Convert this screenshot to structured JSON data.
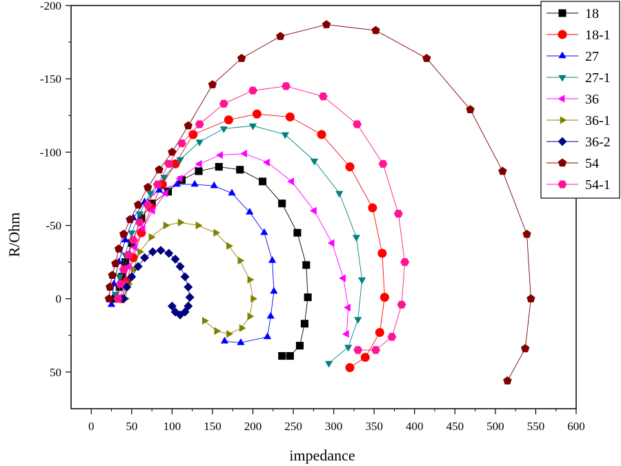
{
  "chart_data": {
    "type": "scatter",
    "xlabel": "impedance",
    "ylabel": "R/Ohm",
    "xlim": [
      -25,
      600
    ],
    "ylim": [
      -200,
      75
    ],
    "y_inverted": true,
    "x_ticks": [
      0,
      50,
      100,
      150,
      200,
      250,
      300,
      350,
      400,
      450,
      500,
      550,
      600
    ],
    "y_ticks": [
      -200,
      -150,
      -100,
      -50,
      0,
      50
    ],
    "grid": false,
    "legend_position": "top-right",
    "series": [
      {
        "name": "18",
        "color": "#000000",
        "marker": "square",
        "points": [
          [
            30,
            0
          ],
          [
            35,
            -8
          ],
          [
            38,
            -15
          ],
          [
            42,
            -25
          ],
          [
            50,
            -38
          ],
          [
            62,
            -55
          ],
          [
            75,
            -65
          ],
          [
            95,
            -73
          ],
          [
            112,
            -81
          ],
          [
            133,
            -87
          ],
          [
            158,
            -90
          ],
          [
            184,
            -88
          ],
          [
            212,
            -80
          ],
          [
            236,
            -65
          ],
          [
            255,
            -45
          ],
          [
            266,
            -23
          ],
          [
            268,
            -1
          ],
          [
            264,
            17
          ],
          [
            258,
            32
          ],
          [
            246,
            39
          ],
          [
            236,
            39
          ]
        ]
      },
      {
        "name": "18-1",
        "color": "#ff0000",
        "marker": "circle",
        "points": [
          [
            38,
            0
          ],
          [
            44,
            -12
          ],
          [
            52,
            -28
          ],
          [
            62,
            -45
          ],
          [
            74,
            -62
          ],
          [
            88,
            -78
          ],
          [
            104,
            -92
          ],
          [
            126,
            -112
          ],
          [
            170,
            -122
          ],
          [
            205,
            -126
          ],
          [
            246,
            -124
          ],
          [
            285,
            -112
          ],
          [
            320,
            -90
          ],
          [
            348,
            -62
          ],
          [
            360,
            -31
          ],
          [
            363,
            -1
          ],
          [
            357,
            23
          ],
          [
            339,
            40
          ],
          [
            320,
            47
          ]
        ]
      },
      {
        "name": "27",
        "color": "#0000ff",
        "marker": "triangle-up",
        "points": [
          [
            25,
            4
          ],
          [
            28,
            -10
          ],
          [
            34,
            -25
          ],
          [
            42,
            -40
          ],
          [
            52,
            -55
          ],
          [
            66,
            -66
          ],
          [
            84,
            -74
          ],
          [
            106,
            -78
          ],
          [
            128,
            -78
          ],
          [
            152,
            -77
          ],
          [
            174,
            -72
          ],
          [
            196,
            -59
          ],
          [
            214,
            -45
          ],
          [
            224,
            -26
          ],
          [
            226,
            -5
          ],
          [
            222,
            12
          ],
          [
            218,
            26
          ],
          [
            185,
            30
          ],
          [
            165,
            29
          ]
        ]
      },
      {
        "name": "27-1",
        "color": "#008080",
        "marker": "triangle-down",
        "points": [
          [
            30,
            -3
          ],
          [
            35,
            -15
          ],
          [
            42,
            -30
          ],
          [
            50,
            -45
          ],
          [
            60,
            -58
          ],
          [
            73,
            -72
          ],
          [
            90,
            -83
          ],
          [
            110,
            -95
          ],
          [
            134,
            -107
          ],
          [
            164,
            -116
          ],
          [
            200,
            -118
          ],
          [
            240,
            -112
          ],
          [
            276,
            -94
          ],
          [
            307,
            -72
          ],
          [
            328,
            -42
          ],
          [
            335,
            -13
          ],
          [
            330,
            14
          ],
          [
            318,
            33
          ],
          [
            294,
            44
          ]
        ]
      },
      {
        "name": "36",
        "color": "#ff00ff",
        "marker": "triangle-left",
        "points": [
          [
            36,
            0
          ],
          [
            40,
            -10
          ],
          [
            46,
            -22
          ],
          [
            54,
            -35
          ],
          [
            64,
            -48
          ],
          [
            76,
            -60
          ],
          [
            92,
            -72
          ],
          [
            110,
            -82
          ],
          [
            134,
            -92
          ],
          [
            160,
            -98
          ],
          [
            190,
            -99
          ],
          [
            218,
            -93
          ],
          [
            248,
            -80
          ],
          [
            276,
            -60
          ],
          [
            298,
            -38
          ],
          [
            312,
            -14
          ],
          [
            318,
            6
          ],
          [
            316,
            24
          ]
        ]
      },
      {
        "name": "36-1",
        "color": "#808000",
        "marker": "triangle-right",
        "points": [
          [
            42,
            0
          ],
          [
            46,
            -10
          ],
          [
            52,
            -20
          ],
          [
            60,
            -32
          ],
          [
            74,
            -42
          ],
          [
            92,
            -50
          ],
          [
            110,
            -52
          ],
          [
            132,
            -50
          ],
          [
            154,
            -45
          ],
          [
            170,
            -36
          ],
          [
            184,
            -26
          ],
          [
            196,
            -13
          ],
          [
            200,
            0
          ],
          [
            196,
            12
          ],
          [
            186,
            20
          ],
          [
            170,
            24
          ],
          [
            155,
            22
          ],
          [
            140,
            15
          ]
        ]
      },
      {
        "name": "36-2",
        "color": "#000080",
        "marker": "diamond",
        "points": [
          [
            40,
            0
          ],
          [
            44,
            -8
          ],
          [
            50,
            -15
          ],
          [
            58,
            -22
          ],
          [
            66,
            -28
          ],
          [
            76,
            -32
          ],
          [
            86,
            -33
          ],
          [
            96,
            -31
          ],
          [
            104,
            -27
          ],
          [
            110,
            -22
          ],
          [
            116,
            -15
          ],
          [
            120,
            -8
          ],
          [
            122,
            -1
          ],
          [
            120,
            5
          ],
          [
            116,
            9
          ],
          [
            110,
            11
          ],
          [
            104,
            9
          ],
          [
            100,
            5
          ]
        ]
      },
      {
        "name": "54",
        "color": "#800000",
        "marker": "pentagon",
        "points": [
          [
            22,
            0
          ],
          [
            23,
            -8
          ],
          [
            26,
            -16
          ],
          [
            30,
            -24
          ],
          [
            34,
            -34
          ],
          [
            40,
            -44
          ],
          [
            48,
            -54
          ],
          [
            58,
            -64
          ],
          [
            70,
            -76
          ],
          [
            84,
            -88
          ],
          [
            100,
            -100
          ],
          [
            120,
            -118
          ],
          [
            150,
            -146
          ],
          [
            186,
            -164
          ],
          [
            234,
            -179
          ],
          [
            291,
            -187
          ],
          [
            352,
            -183
          ],
          [
            415,
            -164
          ],
          [
            469,
            -129
          ],
          [
            509,
            -87
          ],
          [
            539,
            -44
          ],
          [
            544,
            0
          ],
          [
            537,
            34
          ],
          [
            515,
            56
          ]
        ]
      },
      {
        "name": "54-1",
        "color": "#ff1493",
        "marker": "hexagon",
        "points": [
          [
            33,
            0
          ],
          [
            36,
            -10
          ],
          [
            40,
            -20
          ],
          [
            46,
            -30
          ],
          [
            52,
            -40
          ],
          [
            60,
            -52
          ],
          [
            70,
            -64
          ],
          [
            82,
            -78
          ],
          [
            96,
            -92
          ],
          [
            112,
            -106
          ],
          [
            134,
            -119
          ],
          [
            164,
            -133
          ],
          [
            200,
            -142
          ],
          [
            241,
            -145
          ],
          [
            287,
            -138
          ],
          [
            329,
            -119
          ],
          [
            361,
            -92
          ],
          [
            380,
            -58
          ],
          [
            388,
            -25
          ],
          [
            384,
            4
          ],
          [
            372,
            26
          ],
          [
            352,
            35
          ],
          [
            330,
            35
          ]
        ]
      }
    ]
  }
}
